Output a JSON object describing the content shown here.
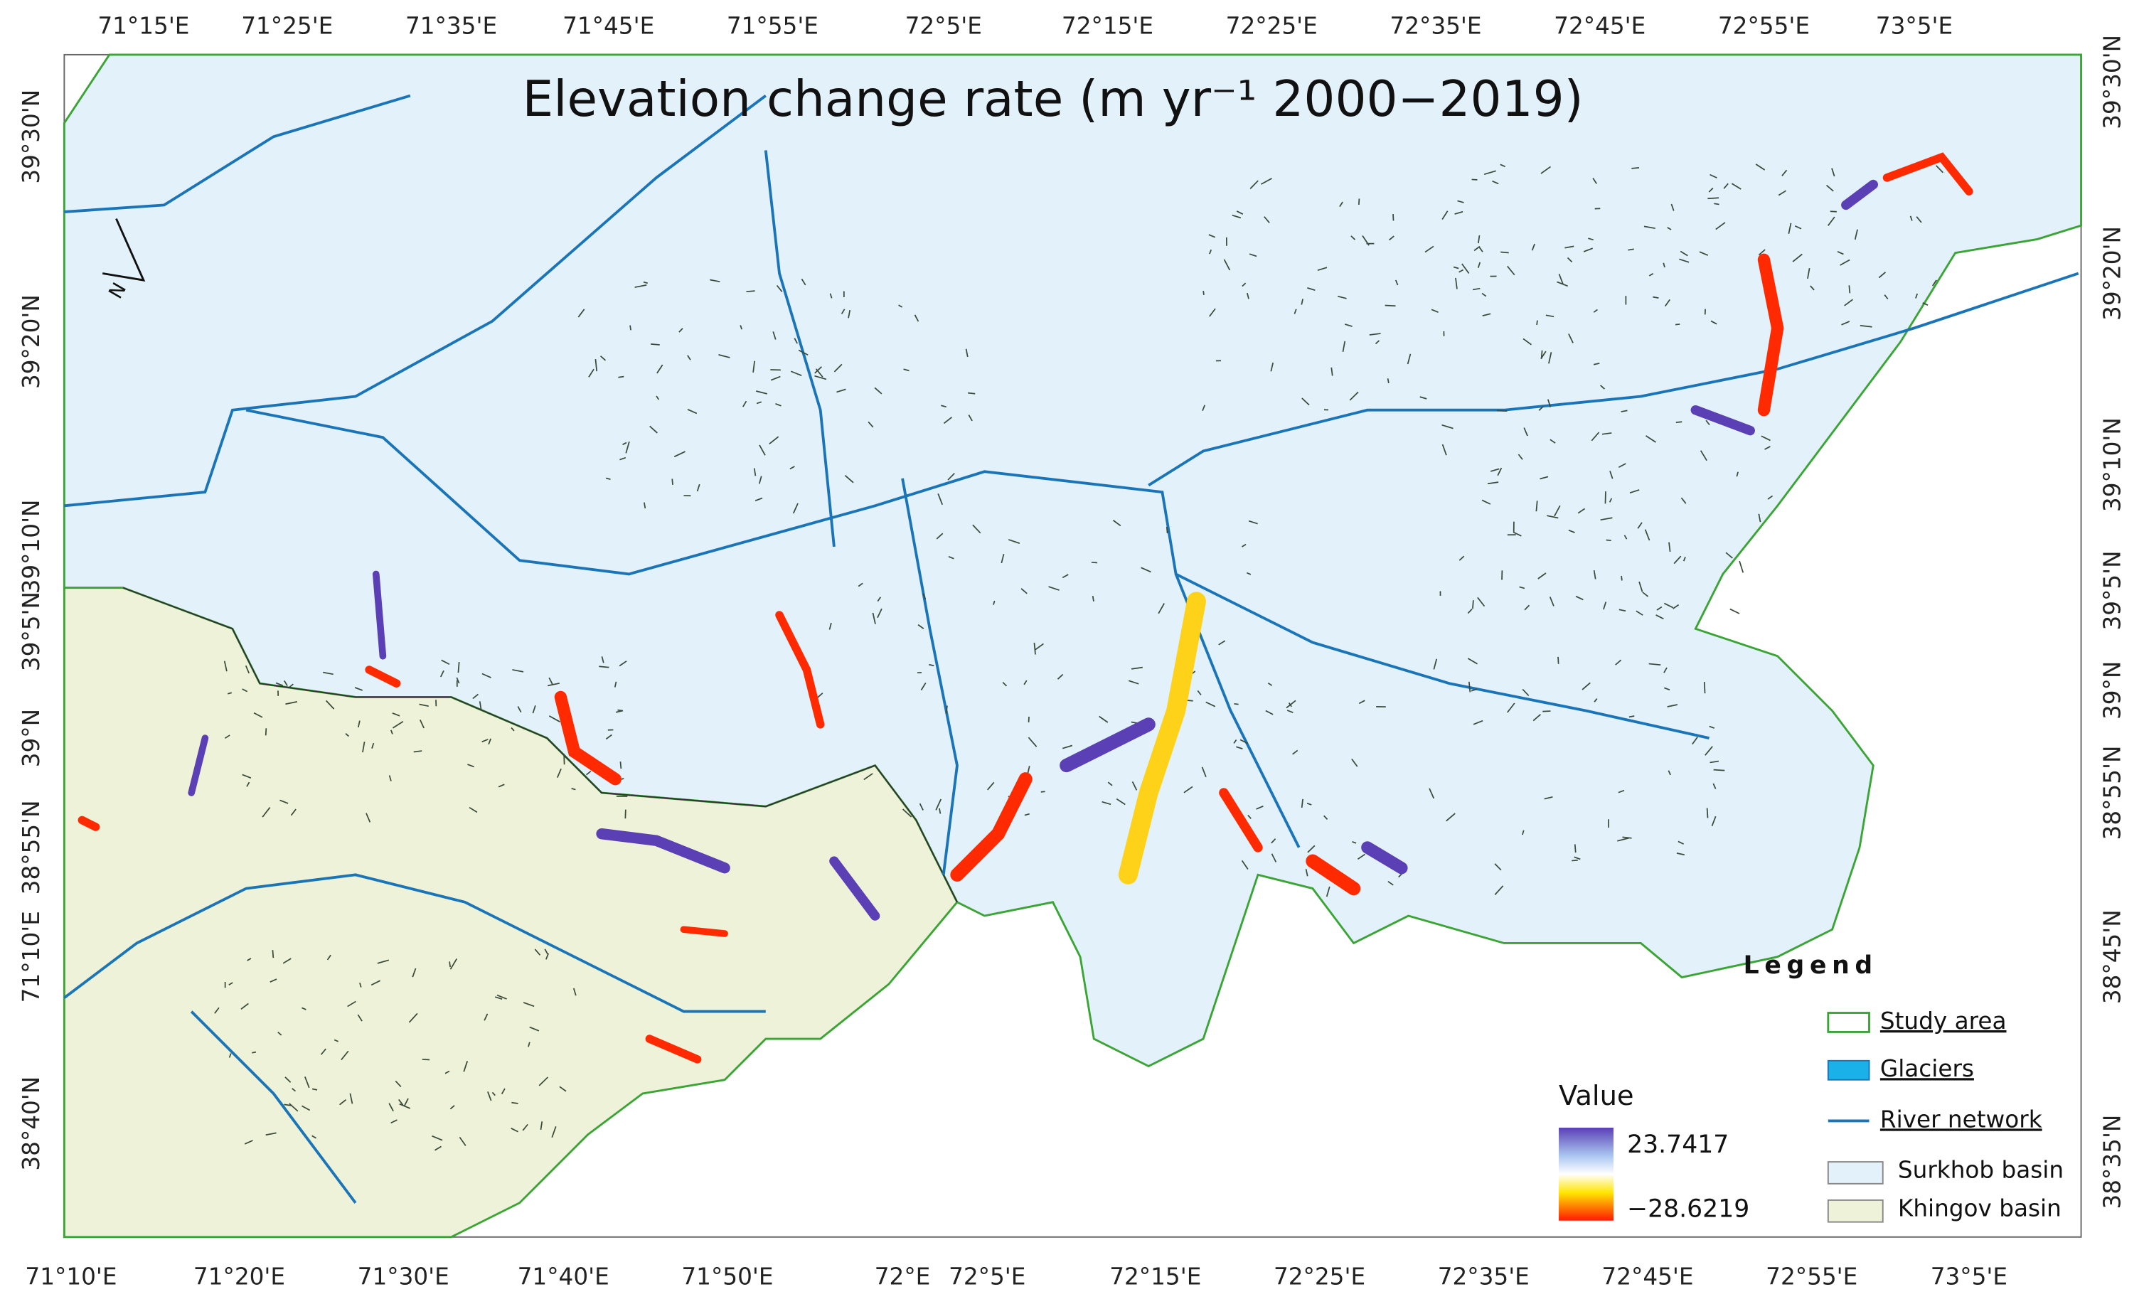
{
  "title": "Elevation change rate (m yr⁻¹   2000−2019)",
  "axes": {
    "top": [
      "71°15'E",
      "71°25'E",
      "71°35'E",
      "71°45'E",
      "71°55'E",
      "72°5'E",
      "72°15'E",
      "72°25'E",
      "72°35'E",
      "72°45'E",
      "72°55'E",
      "73°5'E"
    ],
    "bottom": [
      "71°10'E",
      "71°20'E",
      "71°30'E",
      "71°40'E",
      "71°50'E",
      "72°E",
      "72°5'E",
      "72°15'E",
      "72°25'E",
      "72°35'E",
      "72°45'E",
      "72°55'E",
      "73°5'E"
    ],
    "left": [
      "39°30'N",
      "39°20'N",
      "39°10'N",
      "39°5'N",
      "39°N",
      "38°55'N",
      "71°10'E",
      "38°40'N"
    ],
    "right": [
      "39°30'N",
      "39°20'N",
      "39°10'N",
      "39°5'N",
      "39°N",
      "38°55'N",
      "38°45'N",
      "38°35'N"
    ]
  },
  "north_arrow": "N",
  "colorbar": {
    "title": "Value",
    "max": "23.7417",
    "min": "−28.6219"
  },
  "legend": {
    "title": "Legend",
    "items": [
      "Study area",
      "Glaciers",
      "River network",
      "Surkhob basin",
      "Khingov basin"
    ]
  }
}
